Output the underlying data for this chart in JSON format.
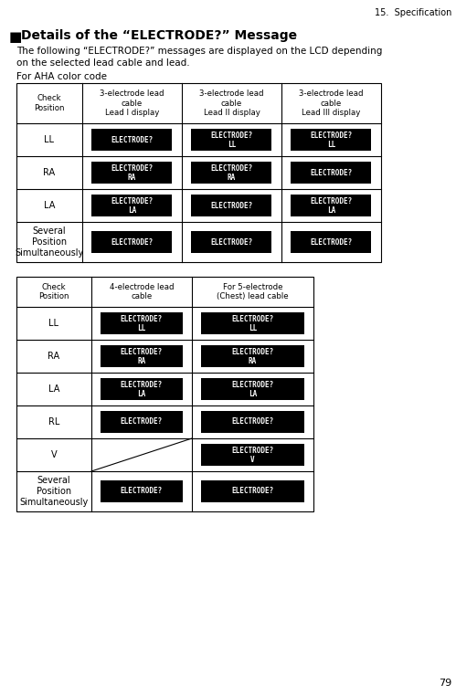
{
  "page_header": "15.  Specification",
  "page_number": "79",
  "section_marker": "■",
  "title": "Details of the “ELECTRODE?” Message",
  "description_line1": "The following “ELECTRODE?” messages are displayed on the LCD depending",
  "description_line2": "on the selected lead cable and lead.",
  "table1_label": "For AHA color code",
  "table1_headers": [
    "Check\nPosition",
    "3-electrode lead\ncable\nLead I display",
    "3-electrode lead\ncable\nLead II display",
    "3-electrode lead\ncable\nLead III display"
  ],
  "table2_headers": [
    "Check\nPosition",
    "4-electrode lead\ncable",
    "For 5-electrode\n(Chest) lead cable"
  ],
  "bg_color": "#ffffff",
  "cell_bg": "#000000",
  "cell_fg": "#ffffff",
  "border_color": "#000000",
  "text_color": "#000000"
}
